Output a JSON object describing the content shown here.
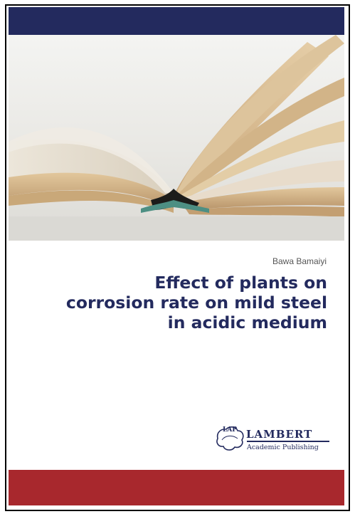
{
  "cover": {
    "author": "Bawa Bamaiyi",
    "title_lines": [
      "Effect of plants on",
      "corrosion rate on mild steel",
      "in acidic medium"
    ],
    "publisher": {
      "emblem_text": "LAP",
      "name": "LAMBERT",
      "subtitle": "Academic Publishing"
    },
    "colors": {
      "top_band": "#232a5e",
      "bottom_band": "#a8282d",
      "title": "#232a5e"
    },
    "image": {
      "subject": "open-book-photo"
    }
  }
}
